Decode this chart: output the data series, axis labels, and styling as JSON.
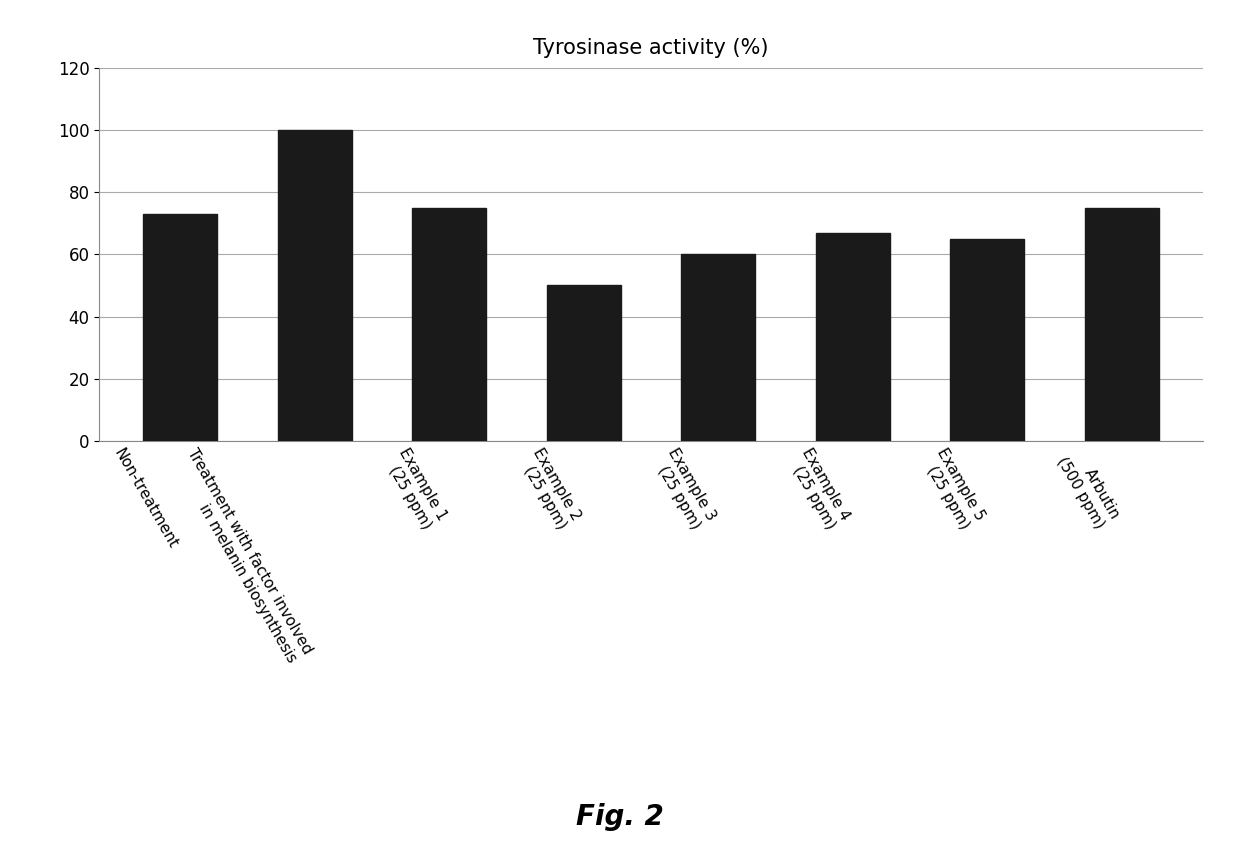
{
  "title": "Tyrosinase activity (%)",
  "categories": [
    "Non-treatment",
    "Treatment with factor involved\nin melanin biosynthesis",
    "Example 1\n(25 ppm)",
    "Example 2\n(25 ppm)",
    "Example 3\n(25 ppm)",
    "Example 4\n(25 ppm)",
    "Example 5\n(25 ppm)",
    "Arbutin\n(500 ppm)"
  ],
  "values": [
    73,
    100,
    75,
    50,
    60,
    67,
    65,
    75
  ],
  "bar_color": "#1a1a1a",
  "ylim": [
    0,
    120
  ],
  "yticks": [
    0,
    20,
    40,
    60,
    80,
    100,
    120
  ],
  "title_fontsize": 15,
  "tick_fontsize": 11,
  "ytick_fontsize": 12,
  "label_rotation": -60,
  "figcaption": "Fig. 2",
  "figcaption_fontsize": 20,
  "background_color": "#ffffff",
  "grid_color": "#aaaaaa",
  "bar_width": 0.55
}
